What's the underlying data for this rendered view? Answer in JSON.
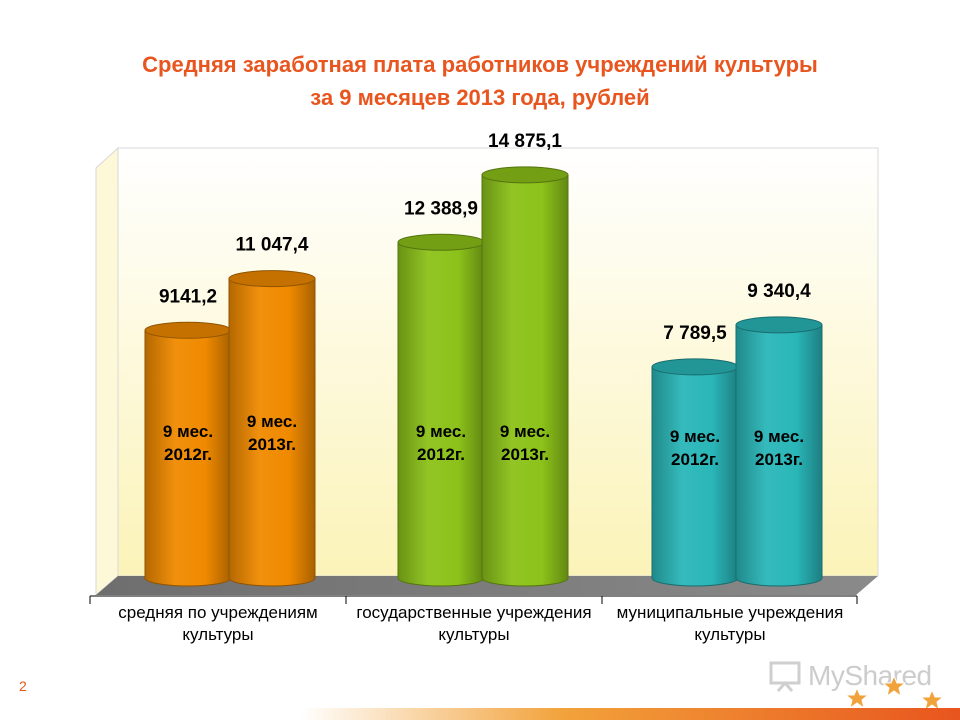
{
  "title": {
    "line1": "Средняя заработная плата работников учреждений культуры",
    "line2": "за 9 месяцев 2013 года, рублей"
  },
  "chart_data": {
    "type": "bar",
    "categories": [
      [
        "средняя по учреждениям",
        "культуры"
      ],
      [
        "государственные учреждения",
        "культуры"
      ],
      [
        "муниципальные учреждения",
        "культуры"
      ]
    ],
    "series": [
      {
        "name": "9 мес. 2012г.",
        "label_lines": [
          "9 мес.",
          "2012г."
        ],
        "values": [
          9141.2,
          12388.9,
          7789.5
        ]
      },
      {
        "name": "9 мес. 2013г.",
        "label_lines": [
          "9 мес.",
          "2013г."
        ],
        "values": [
          11047.4,
          14875.1,
          9340.4
        ]
      }
    ],
    "value_labels": [
      [
        "9141,2",
        "11 047,4"
      ],
      [
        "12 388,9",
        "14 875,1"
      ],
      [
        "7 789,5",
        "9 340,4"
      ]
    ],
    "group_colors": [
      "#f08a00",
      "#8cc21a",
      "#2ab6b8"
    ],
    "ylim": [
      0,
      16000
    ],
    "grid": false,
    "legend": "none"
  },
  "footer": {
    "page_number": "2",
    "logo_text": "MyShared"
  }
}
